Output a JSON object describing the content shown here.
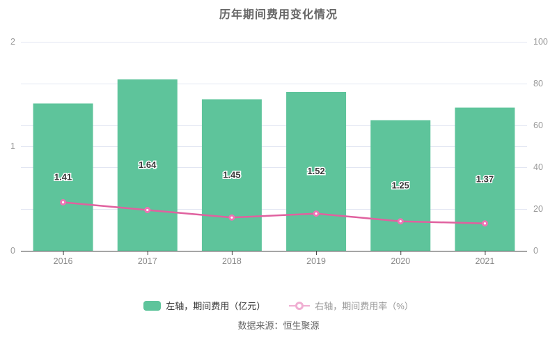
{
  "title": "历年期间费用变化情况",
  "source": "数据来源：恒生聚源",
  "legend": {
    "bar_label": "左轴，期间费用（亿元）",
    "line_label": "右轴，期间费用率（%）"
  },
  "colors": {
    "bar": "#5ec49b",
    "line": "#e0619f",
    "point_fill": "#ee73b4",
    "point_center": "#ffffff",
    "legend_line": "#f0aed2",
    "grid": "#e2e6f2",
    "axis_line": "#3c3c3c",
    "y_tick_text": "#999999",
    "x_tick_text": "#888888",
    "bar_label_text": "#3a3a3a",
    "bar_label_stroke": "#ffffff"
  },
  "chart_data": {
    "type": "bar",
    "title": "历年期间费用变化情况",
    "categories": [
      "2016",
      "2017",
      "2018",
      "2019",
      "2020",
      "2021"
    ],
    "series": [
      {
        "name": "左轴，期间费用（亿元）",
        "type": "bar",
        "axis": "left",
        "values": [
          1.41,
          1.64,
          1.45,
          1.52,
          1.25,
          1.37
        ],
        "labels": [
          "1.41",
          "1.64",
          "1.45",
          "1.52",
          "1.25",
          "1.37"
        ]
      },
      {
        "name": "右轴，期间费用率（%）",
        "type": "line",
        "axis": "right",
        "values": [
          23.2,
          19.5,
          15.9,
          17.8,
          14.1,
          13.1
        ]
      }
    ],
    "left_axis": {
      "min": 0,
      "max": 2,
      "ticks": [
        0,
        1,
        2
      ],
      "tick_labels": [
        "0",
        "1",
        "2"
      ]
    },
    "right_axis": {
      "min": 0,
      "max": 100,
      "ticks": [
        0,
        20,
        40,
        60,
        80,
        100
      ],
      "tick_labels": [
        "0",
        "20",
        "40",
        "60",
        "80",
        "100"
      ]
    },
    "xlabel": "",
    "ylabel": "",
    "grid": true,
    "legend_position": "bottom"
  }
}
